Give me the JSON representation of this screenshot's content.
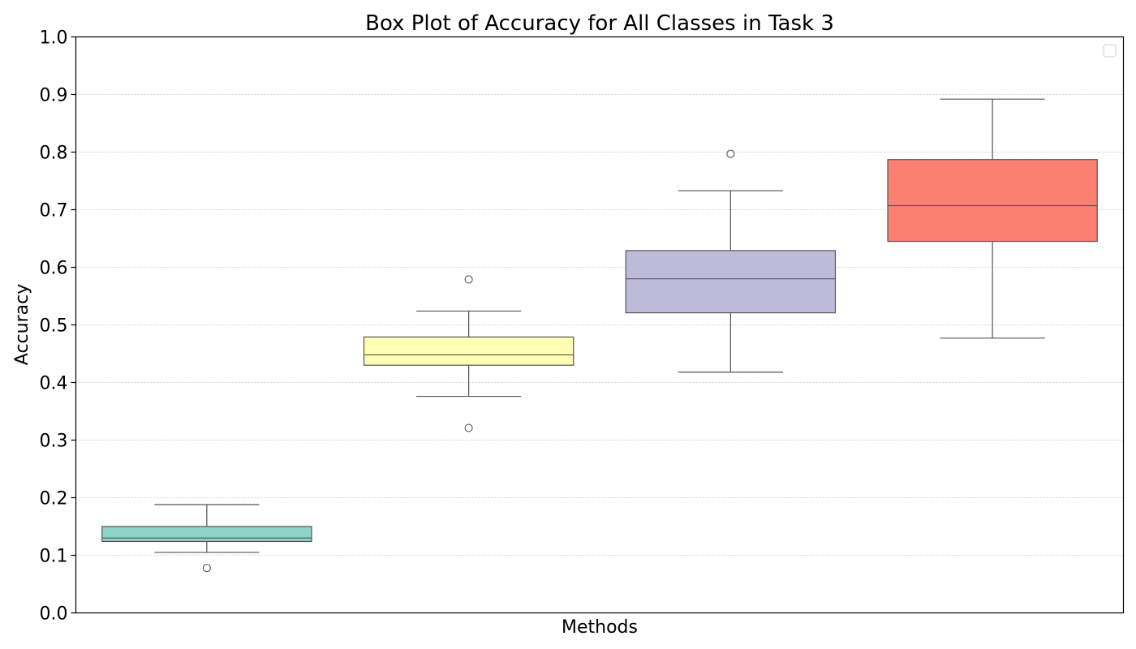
{
  "chart_data": {
    "type": "box",
    "title": "Box Plot of Accuracy for All Classes in Task 3",
    "xlabel": "Methods",
    "ylabel": "Accuracy",
    "ylim": [
      0.0,
      1.0
    ],
    "yticks": [
      "0.0",
      "0.1",
      "0.2",
      "0.3",
      "0.4",
      "0.5",
      "0.6",
      "0.7",
      "0.8",
      "0.9",
      "1.0"
    ],
    "grid": "horizontal dotted",
    "legend": "top-right (empty)",
    "boxes": [
      {
        "color": "#8dd3c7",
        "whisker_low": 0.105,
        "q1": 0.124,
        "median": 0.13,
        "q3": 0.15,
        "whisker_high": 0.188,
        "outliers": [
          0.078
        ]
      },
      {
        "color": "#ffffb3",
        "whisker_low": 0.376,
        "q1": 0.43,
        "median": 0.448,
        "q3": 0.479,
        "whisker_high": 0.524,
        "outliers": [
          0.579,
          0.321
        ]
      },
      {
        "color": "#bebada",
        "whisker_low": 0.418,
        "q1": 0.521,
        "median": 0.58,
        "q3": 0.629,
        "whisker_high": 0.733,
        "outliers": [
          0.797
        ]
      },
      {
        "color": "#fb8072",
        "whisker_low": 0.477,
        "q1": 0.645,
        "median": 0.707,
        "q3": 0.787,
        "whisker_high": 0.892,
        "outliers": []
      }
    ]
  }
}
